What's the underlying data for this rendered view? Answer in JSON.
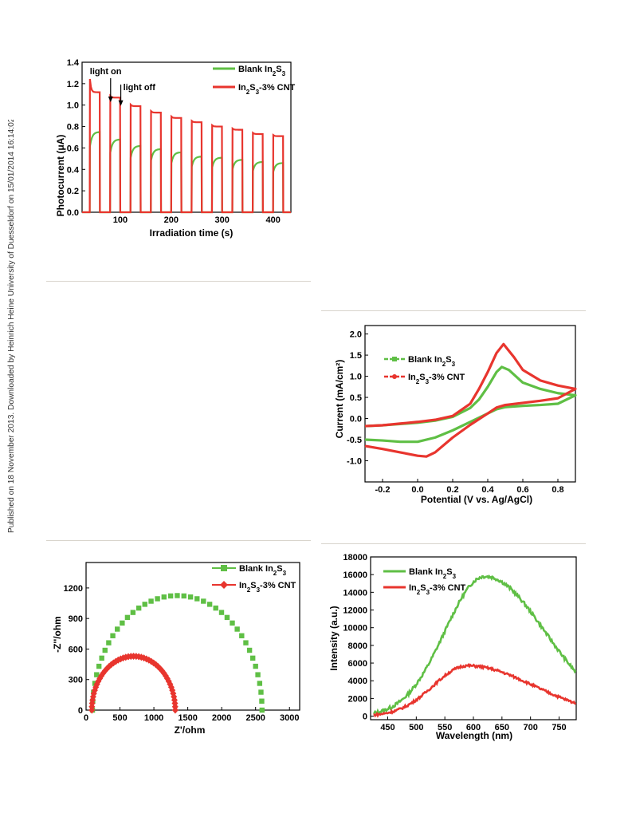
{
  "side_note": "Published on 18 November 2013. Downloaded by Heinrich Heine University of Duesseldorf on 15/01/2014 16:14:02.",
  "colors": {
    "green": "#5fbf45",
    "red": "#e8352e"
  },
  "chart_data": [
    {
      "type": "line",
      "xlabel": "Irradiation time (s)",
      "ylabel": "Photocurrent (μA)",
      "xlim": [
        25,
        435
      ],
      "ylim": [
        0,
        1.4
      ],
      "xticks": [
        "100",
        "200",
        "300",
        "400"
      ],
      "yticks": [
        "0.0",
        "0.2",
        "0.4",
        "0.6",
        "0.8",
        "1.0",
        "1.2",
        "1.4"
      ],
      "annotations": [
        {
          "text": "light on",
          "x": 81,
          "y": 1.02
        },
        {
          "text": "light off",
          "x": 101,
          "y": 1.0
        }
      ],
      "on_times": [
        40,
        80,
        120,
        160,
        200,
        240,
        280,
        320,
        360,
        400
      ],
      "series": [
        {
          "name": "Blank In2S3",
          "peaks": [
            0.75,
            0.68,
            0.62,
            0.59,
            0.56,
            0.52,
            0.51,
            0.49,
            0.47,
            0.46
          ]
        },
        {
          "name": "In2S3-3% CNT",
          "peaks": [
            1.12,
            1.07,
            0.99,
            0.93,
            0.88,
            0.84,
            0.8,
            0.77,
            0.73,
            0.71
          ]
        }
      ],
      "legend": "top-right"
    },
    {
      "type": "line",
      "xlabel": "Potential (V vs. Ag/AgCl)",
      "ylabel": "Current (mA/cm²)",
      "xlim": [
        -0.3,
        0.9
      ],
      "ylim": [
        -1.5,
        2.2
      ],
      "xticks": [
        "-0.2",
        "0.0",
        "0.2",
        "0.4",
        "0.6",
        "0.8"
      ],
      "yticks": [
        "-1.0",
        "-0.5",
        "0.0",
        "0.5",
        "1.0",
        "1.5",
        "2.0"
      ],
      "series": [
        {
          "name": "Blank In2S3",
          "x": [
            -0.3,
            -0.2,
            -0.1,
            0.0,
            0.1,
            0.2,
            0.3,
            0.35,
            0.4,
            0.45,
            0.48,
            0.52,
            0.6,
            0.7,
            0.8,
            0.9,
            0.8,
            0.7,
            0.6,
            0.5,
            0.45,
            0.4,
            0.3,
            0.2,
            0.1,
            0.0,
            -0.1,
            -0.2,
            -0.3
          ],
          "y": [
            -0.18,
            -0.16,
            -0.13,
            -0.1,
            -0.05,
            0.04,
            0.25,
            0.45,
            0.75,
            1.1,
            1.22,
            1.15,
            0.85,
            0.7,
            0.6,
            0.55,
            0.35,
            0.32,
            0.3,
            0.27,
            0.22,
            0.12,
            -0.08,
            -0.28,
            -0.45,
            -0.55,
            -0.55,
            -0.52,
            -0.5
          ]
        },
        {
          "name": "In2S3-3% CNT",
          "x": [
            -0.3,
            -0.2,
            -0.1,
            0.0,
            0.1,
            0.2,
            0.3,
            0.35,
            0.4,
            0.45,
            0.49,
            0.55,
            0.6,
            0.7,
            0.8,
            0.9,
            0.8,
            0.7,
            0.6,
            0.5,
            0.45,
            0.4,
            0.3,
            0.2,
            0.1,
            0.05,
            0.0,
            -0.1,
            -0.2,
            -0.3
          ],
          "y": [
            -0.18,
            -0.16,
            -0.12,
            -0.08,
            -0.03,
            0.06,
            0.35,
            0.7,
            1.1,
            1.55,
            1.76,
            1.45,
            1.15,
            0.9,
            0.78,
            0.7,
            0.48,
            0.42,
            0.37,
            0.32,
            0.26,
            0.12,
            -0.15,
            -0.45,
            -0.8,
            -0.9,
            -0.88,
            -0.8,
            -0.72,
            -0.65
          ]
        }
      ],
      "legend": "top-left"
    },
    {
      "type": "scatter",
      "xlabel": "Z'/ohm",
      "ylabel": "-Z''/ohm",
      "xlim": [
        0,
        3150
      ],
      "ylim": [
        0,
        1450
      ],
      "xticks": [
        "0",
        "500",
        "1000",
        "1500",
        "2000",
        "2500",
        "3000"
      ],
      "yticks": [
        "0",
        "300",
        "600",
        "900",
        "1200"
      ],
      "series": [
        {
          "name": "Blank In2S3",
          "center": 1345,
          "radius": 1250,
          "points": 40
        },
        {
          "name": "In2S3-3% CNT",
          "center": 700,
          "radius": 615,
          "points": 50
        }
      ],
      "legend": "top-right"
    },
    {
      "type": "line",
      "xlabel": "Wavelength (nm)",
      "ylabel": "Intensity (a.u.)",
      "xlim": [
        420,
        780
      ],
      "ylim": [
        -400,
        18000
      ],
      "xticks": [
        "450",
        "500",
        "550",
        "600",
        "650",
        "700",
        "750"
      ],
      "yticks": [
        "0",
        "2000",
        "4000",
        "6000",
        "8000",
        "10000",
        "12000",
        "14000",
        "16000",
        "18000"
      ],
      "series": [
        {
          "name": "Blank In2S3",
          "peak_wavelength": 620,
          "peak_intensity": 15800
        },
        {
          "name": "In2S3-3% CNT",
          "peak_wavelength": 590,
          "peak_intensity": 5700
        }
      ],
      "legend": "top-left"
    }
  ]
}
